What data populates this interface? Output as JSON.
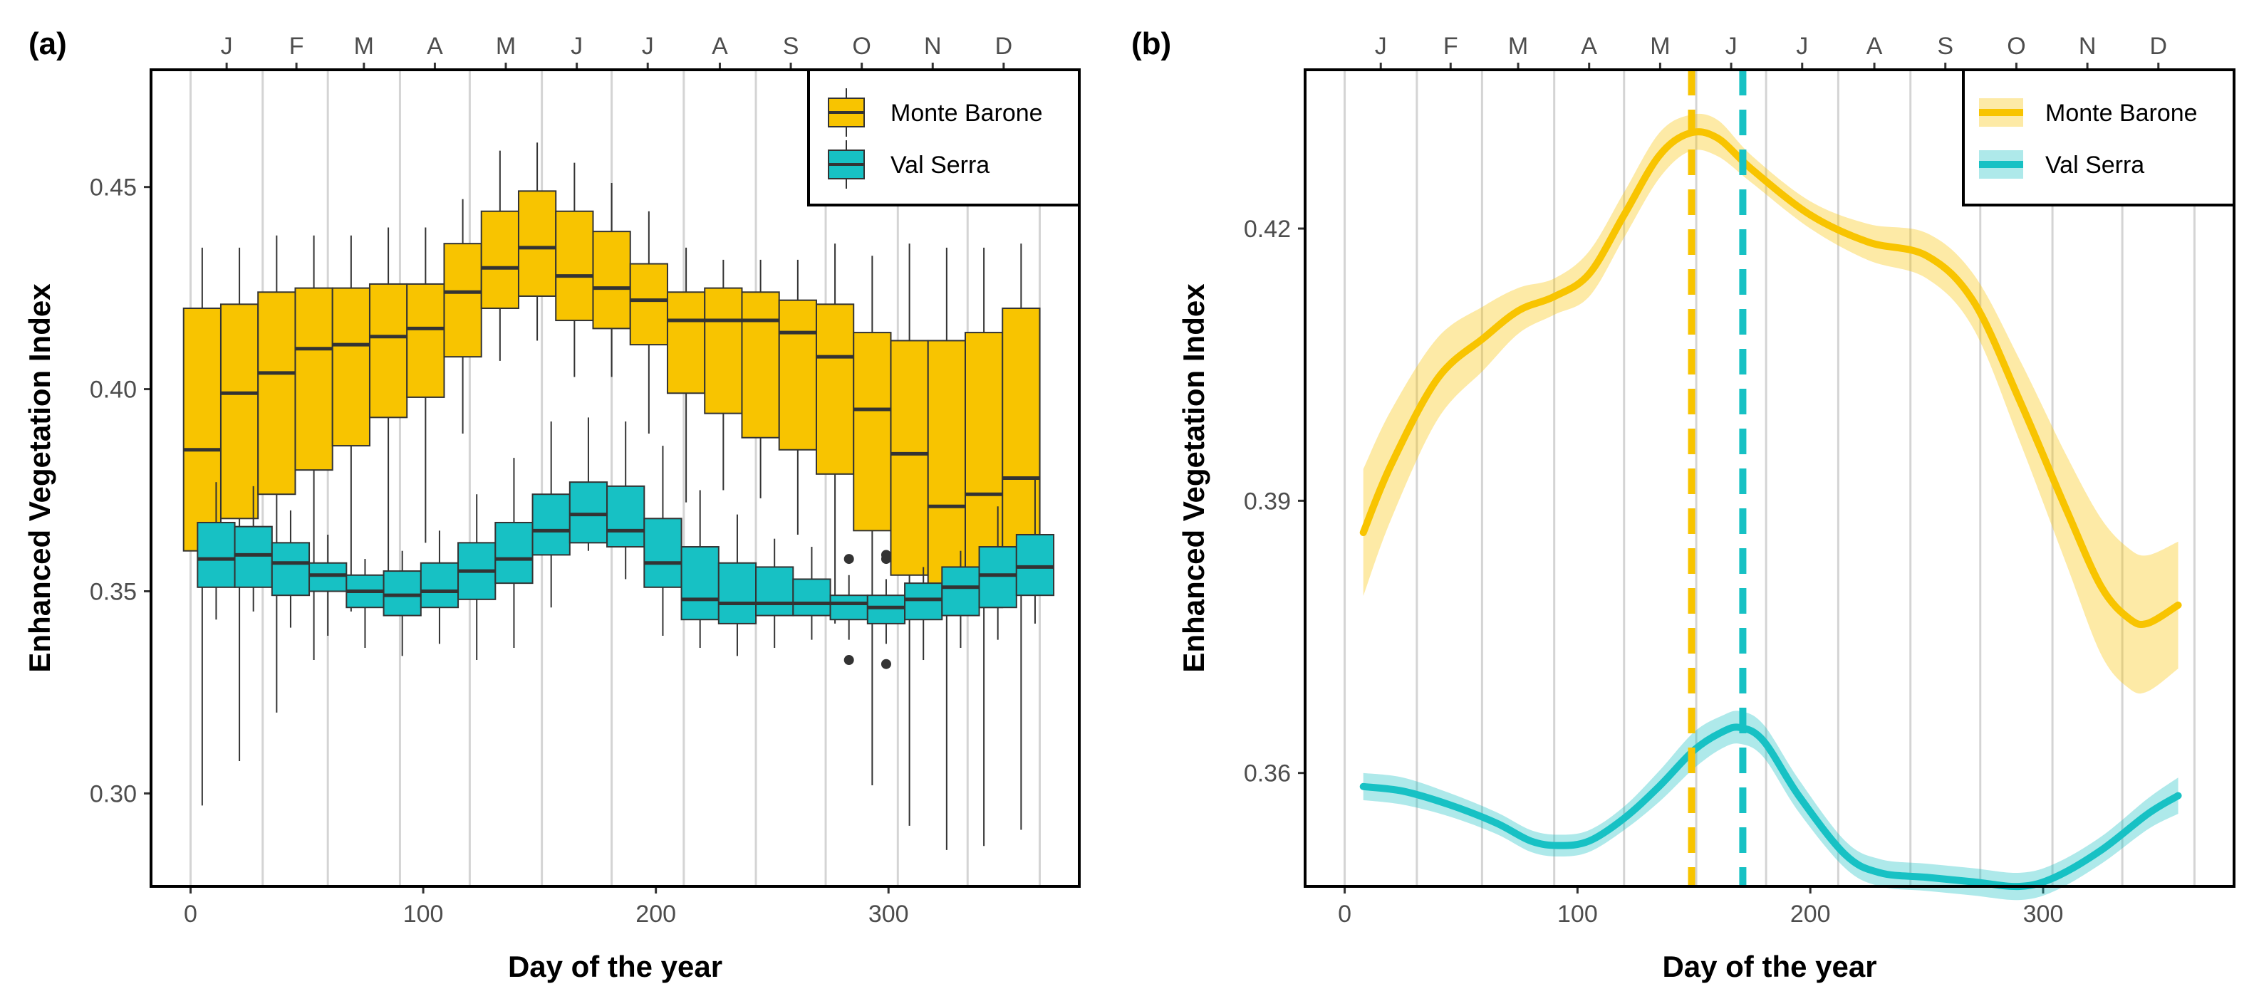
{
  "chart_data": [
    {
      "type": "boxplot",
      "panel_label": "(a)",
      "xlabel": "Day of the year",
      "ylabel": "Enhanced Vegetation Index",
      "xlim": [
        -17,
        382
      ],
      "ylim": [
        0.277,
        0.479
      ],
      "x_ticks": [
        0,
        100,
        200,
        300
      ],
      "y_ticks": [
        0.3,
        0.35,
        0.4,
        0.45
      ],
      "month_ticks": [
        {
          "label": "J",
          "x": 15.5
        },
        {
          "label": "F",
          "x": 45.5
        },
        {
          "label": "M",
          "x": 74.5
        },
        {
          "label": "A",
          "x": 105
        },
        {
          "label": "M",
          "x": 135.5
        },
        {
          "label": "J",
          "x": 166
        },
        {
          "label": "J",
          "x": 196.5
        },
        {
          "label": "A",
          "x": 227.5
        },
        {
          "label": "S",
          "x": 258
        },
        {
          "label": "O",
          "x": 288.5
        },
        {
          "label": "N",
          "x": 319
        },
        {
          "label": "D",
          "x": 349.5
        }
      ],
      "month_boundaries": [
        0,
        31,
        59,
        90,
        120,
        151,
        181,
        212,
        243,
        273,
        304,
        334,
        365
      ],
      "legend": {
        "position": "top-right",
        "entries": [
          "Monte Barone",
          "Val Serra"
        ]
      },
      "series": [
        {
          "name": "Monte Barone",
          "color": "#f8c400",
          "boxes": [
            {
              "x": 5,
              "whislo": 0.297,
              "q1": 0.36,
              "med": 0.385,
              "q3": 0.42,
              "whishi": 0.435
            },
            {
              "x": 21,
              "whislo": 0.308,
              "q1": 0.368,
              "med": 0.399,
              "q3": 0.421,
              "whishi": 0.435
            },
            {
              "x": 37,
              "whislo": 0.32,
              "q1": 0.374,
              "med": 0.404,
              "q3": 0.424,
              "whishi": 0.438
            },
            {
              "x": 53,
              "whislo": 0.333,
              "q1": 0.38,
              "med": 0.41,
              "q3": 0.425,
              "whishi": 0.438
            },
            {
              "x": 69,
              "whislo": 0.345,
              "q1": 0.386,
              "med": 0.411,
              "q3": 0.425,
              "whishi": 0.438
            },
            {
              "x": 85,
              "whislo": 0.35,
              "q1": 0.393,
              "med": 0.413,
              "q3": 0.426,
              "whishi": 0.44
            },
            {
              "x": 101,
              "whislo": 0.362,
              "q1": 0.398,
              "med": 0.415,
              "q3": 0.426,
              "whishi": 0.44
            },
            {
              "x": 117,
              "whislo": 0.389,
              "q1": 0.408,
              "med": 0.424,
              "q3": 0.436,
              "whishi": 0.447
            },
            {
              "x": 133,
              "whislo": 0.407,
              "q1": 0.42,
              "med": 0.43,
              "q3": 0.444,
              "whishi": 0.459
            },
            {
              "x": 149,
              "whislo": 0.412,
              "q1": 0.423,
              "med": 0.435,
              "q3": 0.449,
              "whishi": 0.461
            },
            {
              "x": 165,
              "whislo": 0.403,
              "q1": 0.417,
              "med": 0.428,
              "q3": 0.444,
              "whishi": 0.456
            },
            {
              "x": 181,
              "whislo": 0.403,
              "q1": 0.415,
              "med": 0.425,
              "q3": 0.439,
              "whishi": 0.451
            },
            {
              "x": 197,
              "whislo": 0.389,
              "q1": 0.411,
              "med": 0.422,
              "q3": 0.431,
              "whishi": 0.444
            },
            {
              "x": 213,
              "whislo": 0.372,
              "q1": 0.399,
              "med": 0.417,
              "q3": 0.424,
              "whishi": 0.435
            },
            {
              "x": 229,
              "whislo": 0.375,
              "q1": 0.394,
              "med": 0.417,
              "q3": 0.425,
              "whishi": 0.432
            },
            {
              "x": 245,
              "whislo": 0.373,
              "q1": 0.388,
              "med": 0.417,
              "q3": 0.424,
              "whishi": 0.432
            },
            {
              "x": 261,
              "whislo": 0.364,
              "q1": 0.385,
              "med": 0.414,
              "q3": 0.422,
              "whishi": 0.432
            },
            {
              "x": 277,
              "whislo": 0.342,
              "q1": 0.379,
              "med": 0.408,
              "q3": 0.421,
              "whishi": 0.436
            },
            {
              "x": 293,
              "whislo": 0.302,
              "q1": 0.365,
              "med": 0.395,
              "q3": 0.414,
              "whishi": 0.433
            },
            {
              "x": 309,
              "whislo": 0.292,
              "q1": 0.354,
              "med": 0.384,
              "q3": 0.412,
              "whishi": 0.436
            },
            {
              "x": 325,
              "whislo": 0.286,
              "q1": 0.345,
              "med": 0.371,
              "q3": 0.412,
              "whishi": 0.435
            },
            {
              "x": 341,
              "whislo": 0.287,
              "q1": 0.346,
              "med": 0.374,
              "q3": 0.414,
              "whishi": 0.435
            },
            {
              "x": 357,
              "whislo": 0.291,
              "q1": 0.352,
              "med": 0.378,
              "q3": 0.42,
              "whishi": 0.436
            }
          ]
        },
        {
          "name": "Val Serra",
          "color": "#17c1c4",
          "boxes": [
            {
              "x": 11,
              "whislo": 0.343,
              "q1": 0.351,
              "med": 0.358,
              "q3": 0.367,
              "whishi": 0.377,
              "outliers": []
            },
            {
              "x": 27,
              "whislo": 0.345,
              "q1": 0.351,
              "med": 0.359,
              "q3": 0.366,
              "whishi": 0.376,
              "outliers": []
            },
            {
              "x": 43,
              "whislo": 0.341,
              "q1": 0.349,
              "med": 0.357,
              "q3": 0.362,
              "whishi": 0.37,
              "outliers": []
            },
            {
              "x": 59,
              "whislo": 0.339,
              "q1": 0.35,
              "med": 0.354,
              "q3": 0.357,
              "whishi": 0.364,
              "outliers": []
            },
            {
              "x": 75,
              "whislo": 0.336,
              "q1": 0.346,
              "med": 0.35,
              "q3": 0.354,
              "whishi": 0.358,
              "outliers": []
            },
            {
              "x": 91,
              "whislo": 0.334,
              "q1": 0.344,
              "med": 0.349,
              "q3": 0.355,
              "whishi": 0.36,
              "outliers": []
            },
            {
              "x": 107,
              "whislo": 0.337,
              "q1": 0.346,
              "med": 0.35,
              "q3": 0.357,
              "whishi": 0.365,
              "outliers": []
            },
            {
              "x": 123,
              "whislo": 0.333,
              "q1": 0.348,
              "med": 0.355,
              "q3": 0.362,
              "whishi": 0.374,
              "outliers": []
            },
            {
              "x": 139,
              "whislo": 0.336,
              "q1": 0.352,
              "med": 0.358,
              "q3": 0.367,
              "whishi": 0.383,
              "outliers": []
            },
            {
              "x": 155,
              "whislo": 0.346,
              "q1": 0.359,
              "med": 0.365,
              "q3": 0.374,
              "whishi": 0.392,
              "outliers": []
            },
            {
              "x": 171,
              "whislo": 0.36,
              "q1": 0.362,
              "med": 0.369,
              "q3": 0.377,
              "whishi": 0.393,
              "outliers": []
            },
            {
              "x": 187,
              "whislo": 0.353,
              "q1": 0.361,
              "med": 0.365,
              "q3": 0.376,
              "whishi": 0.392,
              "outliers": []
            },
            {
              "x": 203,
              "whislo": 0.339,
              "q1": 0.351,
              "med": 0.357,
              "q3": 0.368,
              "whishi": 0.386,
              "outliers": []
            },
            {
              "x": 219,
              "whislo": 0.336,
              "q1": 0.343,
              "med": 0.348,
              "q3": 0.361,
              "whishi": 0.375,
              "outliers": []
            },
            {
              "x": 235,
              "whislo": 0.334,
              "q1": 0.342,
              "med": 0.347,
              "q3": 0.357,
              "whishi": 0.369,
              "outliers": []
            },
            {
              "x": 251,
              "whislo": 0.336,
              "q1": 0.344,
              "med": 0.347,
              "q3": 0.356,
              "whishi": 0.363,
              "outliers": []
            },
            {
              "x": 267,
              "whislo": 0.338,
              "q1": 0.344,
              "med": 0.347,
              "q3": 0.353,
              "whishi": 0.361,
              "outliers": []
            },
            {
              "x": 283,
              "whislo": 0.338,
              "q1": 0.343,
              "med": 0.347,
              "q3": 0.349,
              "whishi": 0.354,
              "outliers": [
                0.333,
                0.358
              ]
            },
            {
              "x": 299,
              "whislo": 0.337,
              "q1": 0.342,
              "med": 0.346,
              "q3": 0.349,
              "whishi": 0.353,
              "outliers": [
                0.332,
                0.358,
                0.359
              ]
            },
            {
              "x": 315,
              "whislo": 0.333,
              "q1": 0.343,
              "med": 0.348,
              "q3": 0.352,
              "whishi": 0.356,
              "outliers": []
            },
            {
              "x": 331,
              "whislo": 0.336,
              "q1": 0.344,
              "med": 0.351,
              "q3": 0.356,
              "whishi": 0.36,
              "outliers": []
            },
            {
              "x": 347,
              "whislo": 0.338,
              "q1": 0.346,
              "med": 0.354,
              "q3": 0.361,
              "whishi": 0.371,
              "outliers": []
            },
            {
              "x": 363,
              "whislo": 0.342,
              "q1": 0.349,
              "med": 0.356,
              "q3": 0.364,
              "whishi": 0.378,
              "outliers": []
            }
          ]
        }
      ]
    },
    {
      "type": "line",
      "panel_label": "(b)",
      "xlabel": "Day of the year",
      "ylabel": "Enhanced Vegetation Index",
      "xlim": [
        -17,
        382
      ],
      "ylim": [
        0.3475,
        0.4375
      ],
      "x_ticks": [
        0,
        100,
        200,
        300
      ],
      "y_ticks": [
        0.36,
        0.39,
        0.42
      ],
      "y_tick_labels": [
        "0.36",
        "0.39",
        "0.42"
      ],
      "month_ticks": [
        {
          "label": "J",
          "x": 15.5
        },
        {
          "label": "F",
          "x": 45.5
        },
        {
          "label": "M",
          "x": 74.5
        },
        {
          "label": "A",
          "x": 105
        },
        {
          "label": "M",
          "x": 135.5
        },
        {
          "label": "J",
          "x": 166
        },
        {
          "label": "J",
          "x": 196.5
        },
        {
          "label": "A",
          "x": 227.5
        },
        {
          "label": "S",
          "x": 258
        },
        {
          "label": "O",
          "x": 288.5
        },
        {
          "label": "N",
          "x": 319
        },
        {
          "label": "D",
          "x": 349.5
        }
      ],
      "month_boundaries": [
        0,
        31,
        59,
        90,
        120,
        151,
        181,
        212,
        243,
        273,
        304,
        334,
        365
      ],
      "legend": {
        "position": "top-right",
        "entries": [
          "Monte Barone",
          "Val Serra"
        ]
      },
      "series": [
        {
          "name": "Monte Barone",
          "color": "#f8c400",
          "x": [
            8,
            20,
            40,
            60,
            75,
            90,
            105,
            120,
            135,
            148,
            160,
            175,
            200,
            225,
            250,
            270,
            290,
            310,
            325,
            337,
            345,
            358
          ],
          "y": [
            0.3865,
            0.394,
            0.4035,
            0.408,
            0.411,
            0.4125,
            0.415,
            0.4215,
            0.428,
            0.4305,
            0.43,
            0.4265,
            0.4215,
            0.4185,
            0.417,
            0.412,
            0.401,
            0.389,
            0.3805,
            0.377,
            0.3765,
            0.3785
          ],
          "ci_low": [
            0.3795,
            0.388,
            0.399,
            0.4045,
            0.4085,
            0.4105,
            0.4125,
            0.419,
            0.4255,
            0.4285,
            0.428,
            0.425,
            0.42,
            0.4165,
            0.4145,
            0.409,
            0.3965,
            0.383,
            0.373,
            0.3693,
            0.369,
            0.3715
          ],
          "ci_high": [
            0.3935,
            0.4,
            0.408,
            0.4115,
            0.4135,
            0.4145,
            0.4175,
            0.424,
            0.4305,
            0.4325,
            0.432,
            0.428,
            0.423,
            0.4205,
            0.4195,
            0.415,
            0.4055,
            0.395,
            0.388,
            0.3847,
            0.384,
            0.3855
          ],
          "vline": {
            "x": 149,
            "style": "dashed"
          }
        },
        {
          "name": "Val Serra",
          "color": "#17c1c4",
          "x": [
            8,
            25,
            45,
            65,
            80,
            92,
            105,
            120,
            135,
            150,
            162,
            170,
            180,
            195,
            215,
            230,
            250,
            270,
            290,
            305,
            325,
            345,
            358
          ],
          "y": [
            0.3585,
            0.358,
            0.3565,
            0.3545,
            0.3525,
            0.352,
            0.3525,
            0.355,
            0.3585,
            0.3625,
            0.3645,
            0.365,
            0.3635,
            0.3575,
            0.351,
            0.349,
            0.3485,
            0.348,
            0.3475,
            0.3485,
            0.3515,
            0.3555,
            0.3575
          ],
          "ci_low": [
            0.357,
            0.3565,
            0.3552,
            0.3533,
            0.3513,
            0.3508,
            0.3513,
            0.3537,
            0.3568,
            0.3605,
            0.3627,
            0.3632,
            0.3617,
            0.3557,
            0.3495,
            0.3475,
            0.347,
            0.3465,
            0.346,
            0.347,
            0.35,
            0.3538,
            0.3555
          ],
          "ci_high": [
            0.36,
            0.3595,
            0.3578,
            0.3557,
            0.3537,
            0.3532,
            0.3537,
            0.3563,
            0.3602,
            0.3645,
            0.3663,
            0.3668,
            0.3653,
            0.3593,
            0.3525,
            0.3505,
            0.35,
            0.3495,
            0.349,
            0.35,
            0.353,
            0.3572,
            0.3595
          ],
          "vline": {
            "x": 171,
            "style": "dashed"
          }
        }
      ]
    }
  ]
}
